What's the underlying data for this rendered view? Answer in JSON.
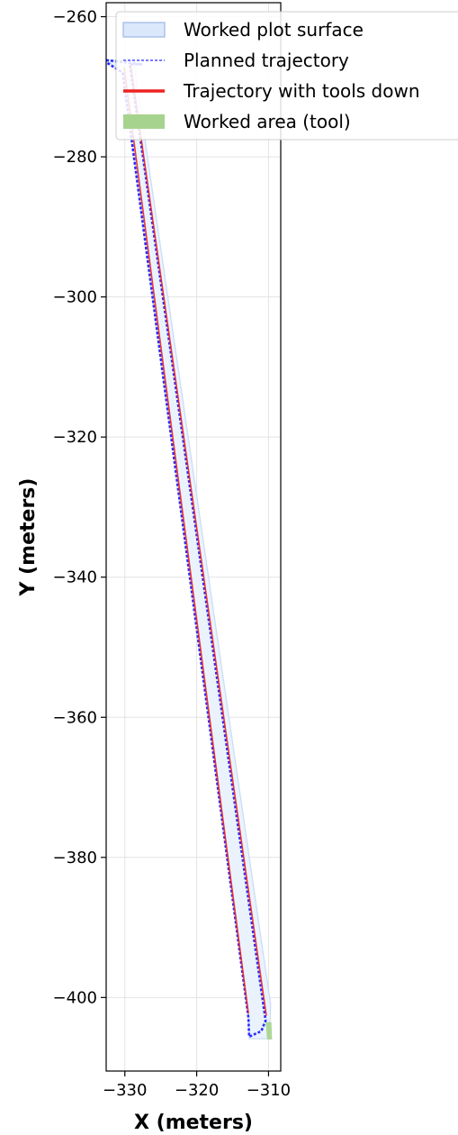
{
  "chart_data": {
    "type": "line",
    "title": "",
    "xlabel": "X (meters)",
    "ylabel": "Y (meters)",
    "xlim": [
      -332.6,
      -308.3
    ],
    "ylim": [
      -410.5,
      -258.0
    ],
    "xticks": [
      -330,
      -320,
      -310
    ],
    "yticks": [
      -260,
      -280,
      -300,
      -320,
      -340,
      -360,
      -380,
      -400
    ],
    "xtick_labels": [
      "−330",
      "−320",
      "−310"
    ],
    "ytick_labels": [
      "−260",
      "−280",
      "−300",
      "−320",
      "−340",
      "−360",
      "−380",
      "−400"
    ],
    "grid": true,
    "legend_position": "top-right",
    "legend": [
      {
        "label": "Worked plot surface",
        "kind": "patch",
        "color": "#dbe8fb",
        "edge": "#9db7e6"
      },
      {
        "label": "Planned trajectory",
        "kind": "dashed-line",
        "color": "#2b2bff"
      },
      {
        "label": "Trajectory with tools down",
        "kind": "line",
        "color": "#ee2222"
      },
      {
        "label": "Worked area (tool)",
        "kind": "patch",
        "color": "#a6d48e"
      }
    ],
    "series": [
      {
        "name": "Worked plot surface",
        "kind": "polygon",
        "color": "#eaf3fd",
        "edge": "#c9dbf6",
        "points": [
          [
            -332.6,
            -266.2
          ],
          [
            -328.8,
            -266.2
          ],
          [
            -309.7,
            -401.0
          ],
          [
            -309.9,
            -405.9
          ],
          [
            -312.7,
            -405.9
          ],
          [
            -312.8,
            -402.9
          ],
          [
            -330.3,
            -268.0
          ]
        ]
      },
      {
        "name": "Planned trajectory",
        "kind": "dashed-line",
        "color": "#2b2bff",
        "points": [
          [
            -332.6,
            -266.2
          ],
          [
            -327.6,
            -266.8
          ],
          [
            -329.3,
            -266.8
          ],
          [
            -310.4,
            -403.3
          ],
          [
            -311.0,
            -404.8
          ],
          [
            -312.7,
            -405.6
          ],
          [
            -312.8,
            -402.9
          ],
          [
            -330.3,
            -268.0
          ],
          [
            -332.6,
            -266.5
          ]
        ]
      },
      {
        "name": "Trajectory with tools down",
        "kind": "line",
        "color": "#ee2222",
        "segments": [
          [
            [
              -330.1,
              -267.2
            ],
            [
              -312.8,
              -402.3
            ]
          ],
          [
            [
              -329.2,
              -266.8
            ],
            [
              -310.3,
              -402.6
            ]
          ]
        ]
      },
      {
        "name": "Worked area (tool)",
        "kind": "polygon",
        "color": "#a6d48e",
        "points": [
          [
            -310.4,
            -403.5
          ],
          [
            -309.6,
            -403.5
          ],
          [
            -309.5,
            -406.0
          ],
          [
            -310.2,
            -406.0
          ]
        ]
      }
    ]
  }
}
